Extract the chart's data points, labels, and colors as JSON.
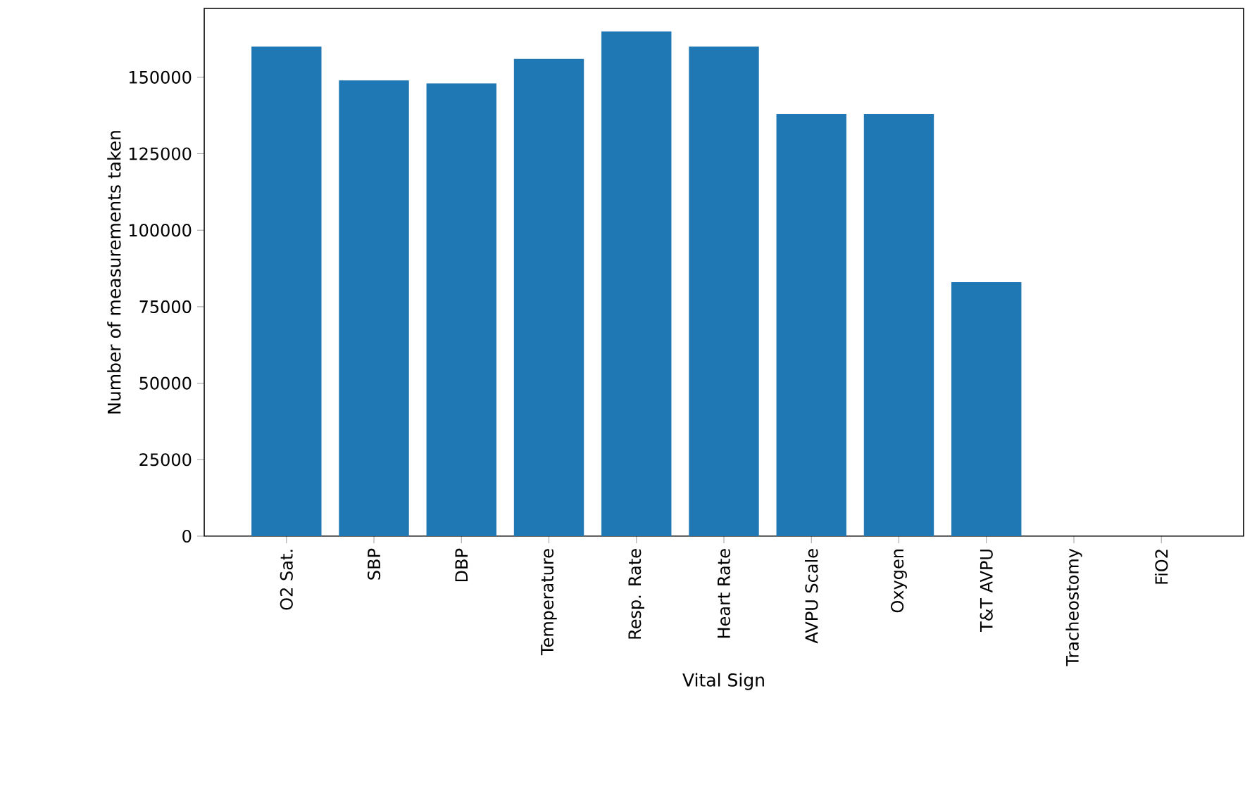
{
  "chart_data": {
    "type": "bar",
    "xlabel": "Vital Sign",
    "ylabel": "Number of measurements taken",
    "categories": [
      "O2 Sat.",
      "SBP",
      "DBP",
      "Temperature",
      "Resp. Rate",
      "Heart Rate",
      "AVPU Scale",
      "Oxygen",
      "T&T AVPU",
      "Tracheostomy",
      "FiO2"
    ],
    "values": [
      160000,
      149000,
      148000,
      156000,
      165000,
      160000,
      138000,
      138000,
      83000,
      0,
      0
    ],
    "color": "#1f77b4",
    "ylim": [
      0,
      172500
    ],
    "yticks": [
      0,
      25000,
      50000,
      75000,
      100000,
      125000,
      150000
    ]
  }
}
